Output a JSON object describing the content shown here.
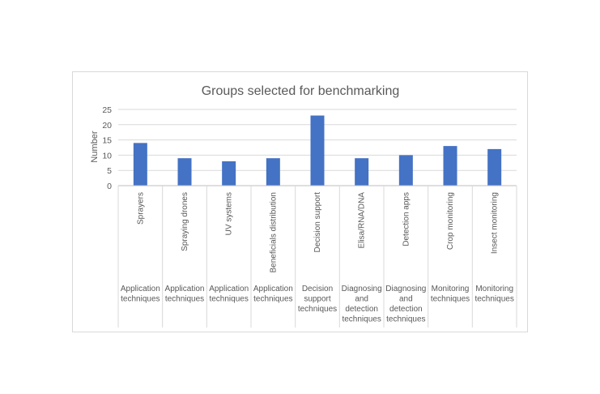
{
  "chart_data": {
    "type": "bar",
    "title": "Groups selected for benchmarking",
    "ylabel": "Number",
    "xlabel": "",
    "ylim": [
      0,
      25
    ],
    "yticks": [
      0,
      5,
      10,
      15,
      20,
      25
    ],
    "grid": true,
    "legend": "none",
    "bar_color": "#4472c4",
    "categories": [
      "Sprayers",
      "Spraying drones",
      "UV systems",
      "Beneficials distribution",
      "Decision support",
      "Elisa/RNA/DNA",
      "Detection apps",
      "Crop monitoring",
      "Insect monitoring"
    ],
    "values": [
      14,
      9,
      8,
      9,
      23,
      9,
      10,
      13,
      12
    ],
    "groups": [
      {
        "label": "Application techniques",
        "lines": [
          "Application",
          "techniques"
        ]
      },
      {
        "label": "Application techniques",
        "lines": [
          "Application",
          "techniques"
        ]
      },
      {
        "label": "Application techniques",
        "lines": [
          "Application",
          "techniques"
        ]
      },
      {
        "label": "Application techniques",
        "lines": [
          "Application",
          "techniques"
        ]
      },
      {
        "label": "Decision support techniques",
        "lines": [
          "Decision",
          "support",
          "techniques"
        ]
      },
      {
        "label": "Diagnosing and detection techniques",
        "lines": [
          "Diagnosing",
          "and",
          "detection",
          "techniques"
        ]
      },
      {
        "label": "Diagnosing and detection techniques",
        "lines": [
          "Diagnosing",
          "and",
          "detection",
          "techniques"
        ]
      },
      {
        "label": "Monitoring techniques",
        "lines": [
          "Monitoring",
          "techniques"
        ]
      },
      {
        "label": "Monitoring techniques",
        "lines": [
          "Monitoring",
          "techniques"
        ]
      }
    ]
  }
}
